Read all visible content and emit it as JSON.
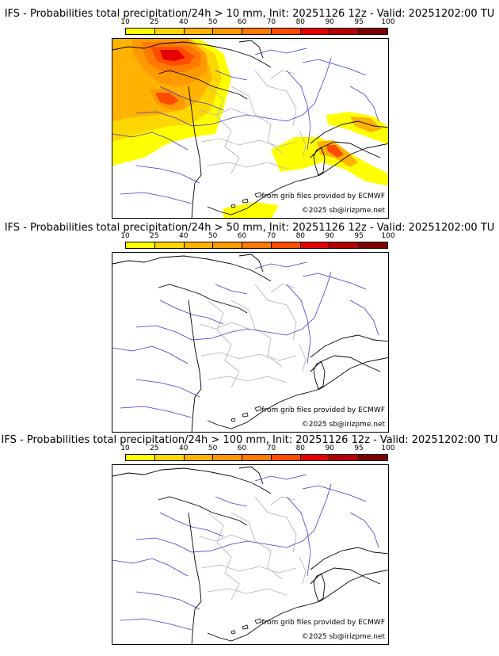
{
  "colorbar": {
    "ticks": [
      "10",
      "25",
      "40",
      "50",
      "60",
      "70",
      "80",
      "90",
      "95",
      "100"
    ],
    "colors": [
      "#ffff00",
      "#ffd700",
      "#ffb300",
      "#ff9900",
      "#ff7a00",
      "#ff4d00",
      "#e60000",
      "#b30000",
      "#800000"
    ]
  },
  "colors": {
    "land_border": "#000000",
    "river": "#3b3bd6",
    "region": "#b0b0b0"
  },
  "panels": [
    {
      "title": "IFS - Probabilities total precipitation/24h > 10 mm, Init: 20251126 12z - Valid: 20251202:00 TU",
      "credit_grib": "from grib files provided by ECMWF",
      "credit_copy": "©2025 sb@irizpme.net",
      "has_precip": true
    },
    {
      "title": "IFS - Probabilities total precipitation/24h > 50 mm, Init: 20251126 12z - Valid: 20251202:00 TU",
      "credit_grib": "from grib files provided by ECMWF",
      "credit_copy": "©2025 sb@irizpme.net",
      "has_precip": false
    },
    {
      "title": "IFS - Probabilities total precipitation/24h > 100 mm, Init: 20251126 12z - Valid: 20251202:00 TU",
      "credit_grib": "from grib files provided by ECMWF",
      "credit_copy": "©2025 sb@irizpme.net",
      "has_precip": false
    }
  ]
}
